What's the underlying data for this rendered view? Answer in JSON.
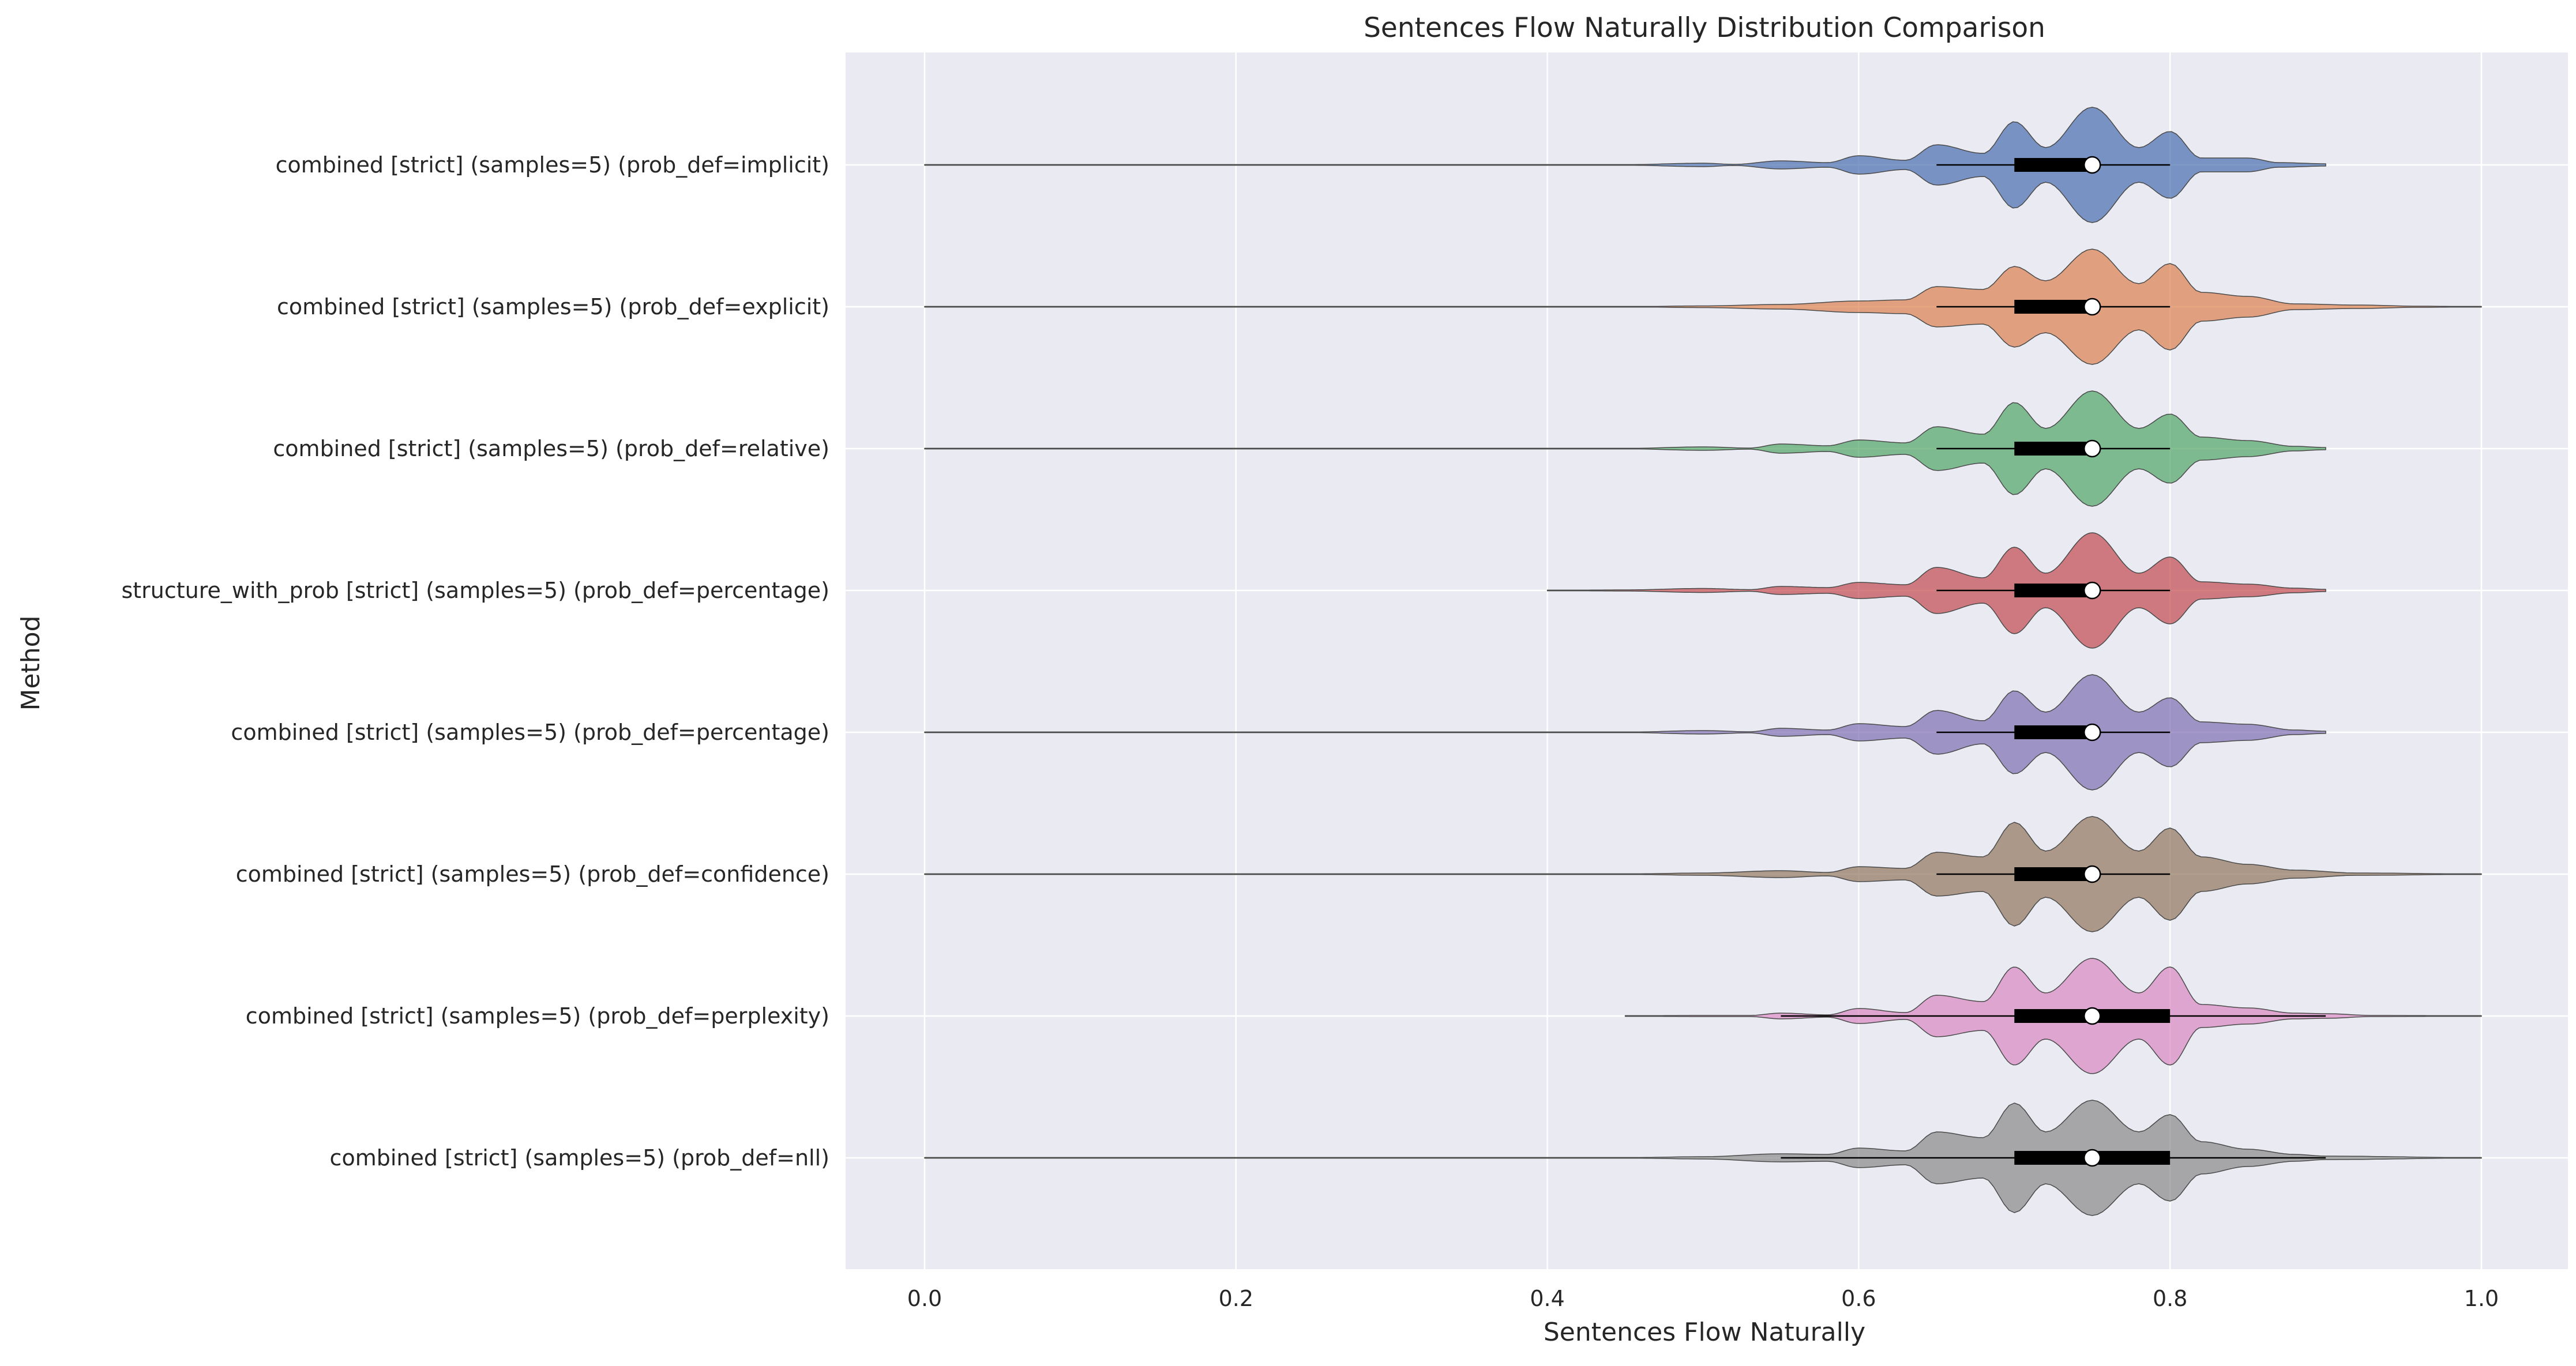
{
  "chart_data": {
    "type": "violin",
    "orientation": "horizontal",
    "title": "Sentences Flow Naturally Distribution Comparison",
    "xlabel": "Sentences Flow Naturally",
    "ylabel": "Method",
    "xlim": [
      -0.05,
      1.05
    ],
    "xticks": [
      0.0,
      0.2,
      0.4,
      0.6,
      0.8,
      1.0
    ],
    "xtick_labels": [
      "0.0",
      "0.2",
      "0.4",
      "0.6",
      "0.8",
      "1.0"
    ],
    "grid": true,
    "style": "seaborn darkgrid",
    "categories": [
      "combined [strict] (samples=5) (prob_def=implicit)",
      "combined [strict] (samples=5) (prob_def=explicit)",
      "combined [strict] (samples=5) (prob_def=relative)",
      "structure_with_prob [strict] (samples=5) (prob_def=percentage)",
      "combined [strict] (samples=5) (prob_def=percentage)",
      "combined [strict] (samples=5) (prob_def=confidence)",
      "combined [strict] (samples=5) (prob_def=perplexity)",
      "combined [strict] (samples=5) (prob_def=nll)"
    ],
    "series": [
      {
        "color": "#4c72b0",
        "min": 0.0,
        "max": 0.9,
        "whisker_low": 0.65,
        "whisker_high": 0.8,
        "q1": 0.7,
        "median": 0.75,
        "q3": 0.75,
        "density": [
          [
            0.0,
            0.001
          ],
          [
            0.1,
            0.001
          ],
          [
            0.2,
            0.001
          ],
          [
            0.3,
            0.001
          ],
          [
            0.4,
            0.002
          ],
          [
            0.45,
            0.005
          ],
          [
            0.5,
            0.03
          ],
          [
            0.52,
            0.01
          ],
          [
            0.55,
            0.07
          ],
          [
            0.58,
            0.04
          ],
          [
            0.6,
            0.16
          ],
          [
            0.63,
            0.08
          ],
          [
            0.65,
            0.35
          ],
          [
            0.68,
            0.2
          ],
          [
            0.7,
            0.75
          ],
          [
            0.72,
            0.3
          ],
          [
            0.75,
            1.0
          ],
          [
            0.78,
            0.3
          ],
          [
            0.8,
            0.58
          ],
          [
            0.82,
            0.12
          ],
          [
            0.85,
            0.12
          ],
          [
            0.87,
            0.04
          ],
          [
            0.9,
            0.02
          ]
        ]
      },
      {
        "color": "#dd8452",
        "min": 0.0,
        "max": 1.0,
        "whisker_low": 0.65,
        "whisker_high": 0.8,
        "q1": 0.7,
        "median": 0.75,
        "q3": 0.75,
        "density": [
          [
            0.0,
            0.006
          ],
          [
            0.02,
            0.002
          ],
          [
            0.1,
            0.001
          ],
          [
            0.3,
            0.001
          ],
          [
            0.45,
            0.002
          ],
          [
            0.5,
            0.015
          ],
          [
            0.55,
            0.04
          ],
          [
            0.6,
            0.1
          ],
          [
            0.63,
            0.12
          ],
          [
            0.65,
            0.35
          ],
          [
            0.68,
            0.3
          ],
          [
            0.7,
            0.7
          ],
          [
            0.72,
            0.45
          ],
          [
            0.75,
            1.0
          ],
          [
            0.78,
            0.4
          ],
          [
            0.8,
            0.75
          ],
          [
            0.82,
            0.25
          ],
          [
            0.85,
            0.18
          ],
          [
            0.88,
            0.05
          ],
          [
            0.92,
            0.03
          ],
          [
            0.96,
            0.01
          ],
          [
            1.0,
            0.003
          ]
        ]
      },
      {
        "color": "#55a868",
        "min": 0.0,
        "max": 0.9,
        "whisker_low": 0.65,
        "whisker_high": 0.8,
        "q1": 0.7,
        "median": 0.75,
        "q3": 0.75,
        "density": [
          [
            0.0,
            0.001
          ],
          [
            0.2,
            0.001
          ],
          [
            0.4,
            0.001
          ],
          [
            0.45,
            0.004
          ],
          [
            0.5,
            0.03
          ],
          [
            0.53,
            0.01
          ],
          [
            0.55,
            0.08
          ],
          [
            0.58,
            0.05
          ],
          [
            0.6,
            0.15
          ],
          [
            0.63,
            0.1
          ],
          [
            0.65,
            0.38
          ],
          [
            0.68,
            0.25
          ],
          [
            0.7,
            0.8
          ],
          [
            0.72,
            0.35
          ],
          [
            0.75,
            1.0
          ],
          [
            0.78,
            0.35
          ],
          [
            0.8,
            0.6
          ],
          [
            0.82,
            0.2
          ],
          [
            0.85,
            0.14
          ],
          [
            0.88,
            0.04
          ],
          [
            0.9,
            0.02
          ]
        ]
      },
      {
        "color": "#c44e52",
        "min": 0.4,
        "max": 0.9,
        "whisker_low": 0.65,
        "whisker_high": 0.8,
        "q1": 0.7,
        "median": 0.75,
        "q3": 0.75,
        "density": [
          [
            0.4,
            0.002
          ],
          [
            0.45,
            0.01
          ],
          [
            0.5,
            0.035
          ],
          [
            0.53,
            0.015
          ],
          [
            0.55,
            0.07
          ],
          [
            0.58,
            0.05
          ],
          [
            0.6,
            0.14
          ],
          [
            0.63,
            0.1
          ],
          [
            0.65,
            0.4
          ],
          [
            0.68,
            0.22
          ],
          [
            0.7,
            0.75
          ],
          [
            0.72,
            0.3
          ],
          [
            0.75,
            1.0
          ],
          [
            0.78,
            0.3
          ],
          [
            0.8,
            0.58
          ],
          [
            0.82,
            0.15
          ],
          [
            0.85,
            0.11
          ],
          [
            0.88,
            0.04
          ],
          [
            0.9,
            0.02
          ]
        ]
      },
      {
        "color": "#8172b3",
        "min": 0.0,
        "max": 0.9,
        "whisker_low": 0.65,
        "whisker_high": 0.8,
        "q1": 0.7,
        "median": 0.75,
        "q3": 0.75,
        "density": [
          [
            0.0,
            0.001
          ],
          [
            0.2,
            0.001
          ],
          [
            0.4,
            0.001
          ],
          [
            0.45,
            0.003
          ],
          [
            0.5,
            0.03
          ],
          [
            0.53,
            0.01
          ],
          [
            0.55,
            0.07
          ],
          [
            0.58,
            0.04
          ],
          [
            0.6,
            0.15
          ],
          [
            0.63,
            0.1
          ],
          [
            0.65,
            0.38
          ],
          [
            0.68,
            0.2
          ],
          [
            0.7,
            0.72
          ],
          [
            0.72,
            0.35
          ],
          [
            0.75,
            1.0
          ],
          [
            0.78,
            0.35
          ],
          [
            0.8,
            0.6
          ],
          [
            0.82,
            0.18
          ],
          [
            0.85,
            0.14
          ],
          [
            0.88,
            0.04
          ],
          [
            0.9,
            0.02
          ]
        ]
      },
      {
        "color": "#937860",
        "min": 0.0,
        "max": 1.0,
        "whisker_low": 0.65,
        "whisker_high": 0.8,
        "q1": 0.7,
        "median": 0.75,
        "q3": 0.75,
        "density": [
          [
            0.0,
            0.001
          ],
          [
            0.2,
            0.001
          ],
          [
            0.4,
            0.001
          ],
          [
            0.45,
            0.004
          ],
          [
            0.5,
            0.02
          ],
          [
            0.55,
            0.06
          ],
          [
            0.58,
            0.03
          ],
          [
            0.6,
            0.13
          ],
          [
            0.63,
            0.1
          ],
          [
            0.65,
            0.38
          ],
          [
            0.68,
            0.3
          ],
          [
            0.7,
            0.9
          ],
          [
            0.72,
            0.4
          ],
          [
            0.75,
            1.0
          ],
          [
            0.78,
            0.4
          ],
          [
            0.8,
            0.8
          ],
          [
            0.82,
            0.3
          ],
          [
            0.85,
            0.17
          ],
          [
            0.88,
            0.07
          ],
          [
            0.92,
            0.02
          ],
          [
            1.0,
            0.003
          ]
        ]
      },
      {
        "color": "#da8bc3",
        "min": 0.45,
        "max": 1.0,
        "whisker_low": 0.55,
        "whisker_high": 0.9,
        "q1": 0.7,
        "median": 0.75,
        "q3": 0.8,
        "density": [
          [
            0.45,
            0.003
          ],
          [
            0.5,
            0.01
          ],
          [
            0.53,
            0.01
          ],
          [
            0.55,
            0.05
          ],
          [
            0.58,
            0.02
          ],
          [
            0.6,
            0.13
          ],
          [
            0.63,
            0.06
          ],
          [
            0.65,
            0.36
          ],
          [
            0.68,
            0.25
          ],
          [
            0.7,
            0.85
          ],
          [
            0.72,
            0.4
          ],
          [
            0.75,
            1.0
          ],
          [
            0.78,
            0.4
          ],
          [
            0.8,
            0.85
          ],
          [
            0.82,
            0.2
          ],
          [
            0.85,
            0.14
          ],
          [
            0.88,
            0.05
          ],
          [
            0.9,
            0.04
          ],
          [
            0.93,
            0.01
          ],
          [
            1.0,
            0.003
          ]
        ]
      },
      {
        "color": "#8c8c8c",
        "min": 0.0,
        "max": 1.0,
        "whisker_low": 0.55,
        "whisker_high": 0.9,
        "q1": 0.7,
        "median": 0.75,
        "q3": 0.8,
        "density": [
          [
            0.0,
            0.001
          ],
          [
            0.2,
            0.001
          ],
          [
            0.4,
            0.001
          ],
          [
            0.45,
            0.004
          ],
          [
            0.5,
            0.02
          ],
          [
            0.55,
            0.07
          ],
          [
            0.58,
            0.06
          ],
          [
            0.6,
            0.17
          ],
          [
            0.63,
            0.12
          ],
          [
            0.65,
            0.45
          ],
          [
            0.68,
            0.35
          ],
          [
            0.7,
            0.95
          ],
          [
            0.72,
            0.45
          ],
          [
            0.75,
            1.0
          ],
          [
            0.78,
            0.45
          ],
          [
            0.8,
            0.75
          ],
          [
            0.82,
            0.28
          ],
          [
            0.85,
            0.15
          ],
          [
            0.88,
            0.06
          ],
          [
            0.9,
            0.03
          ],
          [
            1.0,
            0.003
          ]
        ]
      }
    ]
  }
}
